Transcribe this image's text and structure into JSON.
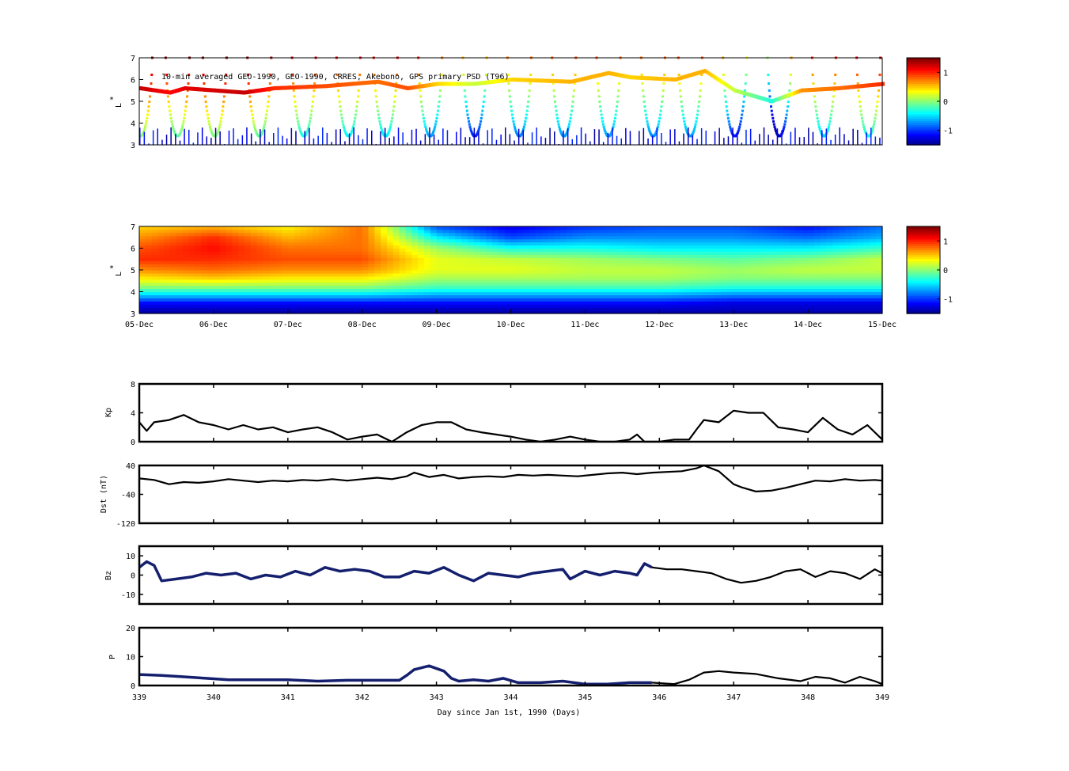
{
  "chart_data": [
    {
      "type": "heatmap",
      "panel": "psd-observed",
      "annotation": "10-min averaged GEO-1990, GEO-1990, CRRES, Akebono, GPS  primary PSD (T96)",
      "ylabel_sup": "*",
      "ylabel": "L",
      "ylim": [
        3,
        7
      ],
      "yticks": [
        "3",
        "4",
        "5",
        "6",
        "7"
      ],
      "x_range_days": [
        339,
        349
      ],
      "colorbar": {
        "ticks": [
          "1",
          "0",
          "-1"
        ],
        "range": [
          -1.5,
          1.5
        ]
      },
      "orbit_passes_x": [
        339.0,
        339.5,
        340.0,
        340.6,
        341.2,
        341.8,
        342.3,
        342.9,
        343.5,
        344.1,
        344.7,
        345.3,
        345.9,
        346.4,
        347.0,
        347.6,
        348.2,
        348.8
      ],
      "geo_track": [
        {
          "x": 339.0,
          "l": 5.6,
          "v": 1.3
        },
        {
          "x": 339.4,
          "l": 5.4,
          "v": 1.1
        },
        {
          "x": 339.6,
          "l": 5.6,
          "v": 1.2
        },
        {
          "x": 340.4,
          "l": 5.4,
          "v": 1.3
        },
        {
          "x": 340.8,
          "l": 5.6,
          "v": 1.0
        },
        {
          "x": 341.5,
          "l": 5.7,
          "v": 0.9
        },
        {
          "x": 342.2,
          "l": 5.9,
          "v": 0.8
        },
        {
          "x": 342.6,
          "l": 5.6,
          "v": 0.9
        },
        {
          "x": 343.0,
          "l": 5.8,
          "v": 0.5
        },
        {
          "x": 343.5,
          "l": 5.8,
          "v": 0.2
        },
        {
          "x": 344.0,
          "l": 6.0,
          "v": 0.5
        },
        {
          "x": 344.8,
          "l": 5.9,
          "v": 0.6
        },
        {
          "x": 345.3,
          "l": 6.3,
          "v": 0.6
        },
        {
          "x": 345.6,
          "l": 6.1,
          "v": 0.5
        },
        {
          "x": 346.2,
          "l": 6.0,
          "v": 0.6
        },
        {
          "x": 346.6,
          "l": 6.4,
          "v": 0.6
        },
        {
          "x": 347.0,
          "l": 5.5,
          "v": 0.2
        },
        {
          "x": 347.5,
          "l": 5.0,
          "v": -0.3
        },
        {
          "x": 347.9,
          "l": 5.5,
          "v": 0.7
        },
        {
          "x": 348.4,
          "l": 5.6,
          "v": 0.8
        },
        {
          "x": 349.0,
          "l": 5.8,
          "v": 1.0
        }
      ]
    },
    {
      "type": "heatmap",
      "panel": "psd-reanalysis",
      "ylabel_sup": "*",
      "ylabel": "L",
      "ylim": [
        3,
        7
      ],
      "yticks": [
        "3",
        "4",
        "5",
        "6",
        "7"
      ],
      "x_range_days": [
        339,
        349
      ],
      "xtick_labels": [
        "05-Dec",
        "06-Dec",
        "07-Dec",
        "08-Dec",
        "09-Dec",
        "10-Dec",
        "11-Dec",
        "12-Dec",
        "13-Dec",
        "14-Dec",
        "15-Dec"
      ],
      "colorbar": {
        "ticks": [
          "1",
          "0",
          "-1"
        ],
        "range": [
          -1.5,
          1.5
        ]
      },
      "profile_L": [
        3.0,
        3.2,
        3.5,
        3.8,
        4.2,
        4.6,
        5.0,
        5.5,
        6.0,
        6.5,
        7.0
      ],
      "profile_x": [
        339.0,
        340.0,
        341.0,
        342.0,
        343.0,
        344.0,
        345.0,
        346.0,
        347.0,
        348.0,
        349.0
      ],
      "profile_values": [
        [
          -1.4,
          -1.3,
          -1.1,
          -0.6,
          0.0,
          0.4,
          0.7,
          1.0,
          0.9,
          0.7,
          0.5
        ],
        [
          -1.4,
          -1.3,
          -1.1,
          -0.6,
          0.0,
          0.5,
          0.8,
          1.0,
          1.1,
          1.0,
          0.6
        ],
        [
          -1.4,
          -1.3,
          -1.1,
          -0.6,
          0.0,
          0.4,
          0.7,
          0.9,
          0.8,
          0.6,
          0.4
        ],
        [
          -1.4,
          -1.3,
          -1.1,
          -0.6,
          0.0,
          0.4,
          0.7,
          0.9,
          0.8,
          0.8,
          0.8
        ],
        [
          -1.4,
          -1.3,
          -1.1,
          -0.7,
          -0.2,
          0.1,
          0.3,
          0.3,
          0.1,
          -0.4,
          -0.9
        ],
        [
          -1.4,
          -1.3,
          -1.1,
          -0.7,
          -0.2,
          0.1,
          0.3,
          0.2,
          -0.3,
          -0.9,
          -1.2
        ],
        [
          -1.4,
          -1.3,
          -1.1,
          -0.7,
          -0.2,
          0.1,
          0.2,
          0.1,
          -0.3,
          -0.7,
          -1.0
        ],
        [
          -1.4,
          -1.3,
          -1.1,
          -0.7,
          -0.2,
          0.1,
          0.2,
          0.0,
          -0.4,
          -0.7,
          -0.9
        ],
        [
          -1.4,
          -1.3,
          -1.2,
          -0.8,
          -0.3,
          0.0,
          0.1,
          -0.1,
          -0.4,
          -0.7,
          -0.9
        ],
        [
          -1.4,
          -1.3,
          -1.2,
          -0.8,
          -0.3,
          0.0,
          0.2,
          0.0,
          -0.4,
          -0.8,
          -1.1
        ],
        [
          -1.4,
          -1.3,
          -1.2,
          -0.8,
          -0.3,
          0.0,
          0.2,
          0.2,
          -0.2,
          -0.6,
          -0.8
        ]
      ]
    },
    {
      "type": "line",
      "panel": "kp",
      "ylabel": "Kp",
      "ylim": [
        0,
        8
      ],
      "yticks": [
        "0",
        "4",
        "8"
      ],
      "x_range_days": [
        339,
        349
      ],
      "series": [
        {
          "x": [
            339.0,
            339.1,
            339.2,
            339.4,
            339.6,
            339.8,
            340.0,
            340.2,
            340.4,
            340.6,
            340.8,
            341.0,
            341.2,
            341.4,
            341.6,
            341.8,
            342.0,
            342.2,
            342.4,
            342.6,
            342.8,
            343.0,
            343.2,
            343.4,
            343.6,
            343.8,
            344.0,
            344.2,
            344.4,
            344.6,
            344.8,
            345.0,
            345.2,
            345.4,
            345.6,
            345.7,
            345.8,
            346.0,
            346.2,
            346.4,
            346.5,
            346.6,
            346.8,
            347.0,
            347.2,
            347.4,
            347.6,
            347.8,
            348.0,
            348.2,
            348.4,
            348.6,
            348.8,
            349.0
          ],
          "y": [
            2.7,
            1.5,
            2.7,
            3.0,
            3.7,
            2.7,
            2.3,
            1.7,
            2.3,
            1.7,
            2.0,
            1.3,
            1.7,
            2.0,
            1.3,
            0.3,
            0.7,
            1.0,
            0.0,
            1.3,
            2.3,
            2.7,
            2.7,
            1.7,
            1.3,
            1.0,
            0.7,
            0.3,
            0.0,
            0.3,
            0.7,
            0.3,
            0.0,
            0.0,
            0.3,
            1.0,
            0.0,
            0.0,
            0.3,
            0.3,
            1.7,
            3.0,
            2.7,
            4.3,
            4.0,
            4.0,
            2.0,
            1.7,
            1.3,
            3.3,
            1.7,
            1.0,
            2.3,
            0.3
          ]
        }
      ]
    },
    {
      "type": "line",
      "panel": "dst",
      "ylabel": "Dst (nT)",
      "ylim": [
        -120,
        40
      ],
      "yticks": [
        "-120",
        "-40",
        "40"
      ],
      "x_range_days": [
        339,
        349
      ],
      "series": [
        {
          "x": [
            339.0,
            339.2,
            339.4,
            339.6,
            339.8,
            340.0,
            340.2,
            340.4,
            340.6,
            340.8,
            341.0,
            341.2,
            341.4,
            341.6,
            341.8,
            342.0,
            342.2,
            342.4,
            342.6,
            342.7,
            342.9,
            343.1,
            343.3,
            343.5,
            343.7,
            343.9,
            344.1,
            344.3,
            344.5,
            344.7,
            344.9,
            345.1,
            345.3,
            345.5,
            345.7,
            345.9,
            346.1,
            346.3,
            346.5,
            346.6,
            346.8,
            347.0,
            347.1,
            347.3,
            347.5,
            347.7,
            347.9,
            348.1,
            348.3,
            348.5,
            348.7,
            348.9,
            349.0
          ],
          "y": [
            4,
            0,
            -12,
            -6,
            -8,
            -4,
            2,
            -2,
            -6,
            -2,
            -4,
            0,
            -2,
            2,
            -2,
            2,
            6,
            2,
            10,
            20,
            8,
            14,
            4,
            8,
            10,
            8,
            14,
            12,
            14,
            12,
            10,
            14,
            18,
            20,
            16,
            20,
            22,
            24,
            32,
            40,
            24,
            -12,
            -20,
            -32,
            -30,
            -22,
            -12,
            -2,
            -4,
            2,
            -2,
            0,
            -2
          ]
        }
      ]
    },
    {
      "type": "line",
      "panel": "bz",
      "ylabel": "Bz",
      "ylim": [
        -15,
        15
      ],
      "yticks": [
        "-10",
        "0",
        "10"
      ],
      "x_range_days": [
        339,
        349
      ],
      "series": [
        {
          "x": [
            339.0,
            339.1,
            339.2,
            339.3,
            339.5,
            339.7,
            339.9,
            340.1,
            340.3,
            340.5,
            340.7,
            340.9,
            341.1,
            341.3,
            341.5,
            341.7,
            341.9,
            342.1,
            342.3,
            342.5,
            342.7,
            342.9,
            343.1,
            343.3,
            343.5,
            343.7,
            343.9,
            344.1,
            344.3,
            344.5,
            344.7,
            344.8,
            345.0,
            345.2,
            345.4,
            345.6,
            345.7,
            345.8,
            345.9
          ],
          "y": [
            4,
            7,
            5,
            -3,
            -2,
            -1,
            1,
            0,
            1,
            -2,
            0,
            -1,
            2,
            0,
            4,
            2,
            3,
            2,
            -1,
            -1,
            2,
            1,
            4,
            0,
            -3,
            1,
            0,
            -1,
            1,
            2,
            3,
            -2,
            2,
            0,
            2,
            1,
            0,
            6,
            4
          ],
          "color": "#141f6e"
        },
        {
          "x": [
            345.9,
            346.1,
            346.3,
            346.5,
            346.7,
            346.9,
            347.1,
            347.3,
            347.5,
            347.7,
            347.9,
            348.1,
            348.3,
            348.5,
            348.7,
            348.9,
            349.0
          ],
          "y": [
            4,
            3,
            3,
            2,
            1,
            -2,
            -4,
            -3,
            -1,
            2,
            3,
            -1,
            2,
            1,
            -2,
            3,
            1
          ],
          "color": "#000000"
        }
      ]
    },
    {
      "type": "line",
      "panel": "pdyn",
      "ylabel": "P",
      "ylim": [
        0,
        20
      ],
      "yticks": [
        "0",
        "10",
        "20"
      ],
      "x_range_days": [
        339,
        349
      ],
      "xtick_labels": [
        "339",
        "340",
        "341",
        "342",
        "343",
        "344",
        "345",
        "346",
        "347",
        "348",
        "349"
      ],
      "xlabel": "Day since Jan 1st, 1990 (Days)",
      "series": [
        {
          "x": [
            339.0,
            339.3,
            339.6,
            339.9,
            340.2,
            340.6,
            341.0,
            341.4,
            341.8,
            342.2,
            342.5,
            342.6,
            342.7,
            342.9,
            343.1,
            343.2,
            343.3,
            343.5,
            343.7,
            343.9,
            344.1,
            344.4,
            344.7,
            345.0,
            345.3,
            345.6,
            345.9
          ],
          "y": [
            3.8,
            3.5,
            3.0,
            2.5,
            2.0,
            2.0,
            2.0,
            1.5,
            1.8,
            1.8,
            1.8,
            3.5,
            5.5,
            6.8,
            5.0,
            2.5,
            1.5,
            2.0,
            1.5,
            2.5,
            1.0,
            1.0,
            1.5,
            0.5,
            0.5,
            1.0,
            1.0
          ],
          "color": "#141f6e"
        },
        {
          "x": [
            345.9,
            346.2,
            346.4,
            346.6,
            346.8,
            347.0,
            347.3,
            347.6,
            347.9,
            348.1,
            348.3,
            348.5,
            348.7,
            348.9,
            349.0
          ],
          "y": [
            1.0,
            0.5,
            2.0,
            4.5,
            5.0,
            4.5,
            4.0,
            2.5,
            1.5,
            3.0,
            2.5,
            1.0,
            3.0,
            1.5,
            0.5
          ],
          "color": "#000000"
        }
      ]
    }
  ]
}
